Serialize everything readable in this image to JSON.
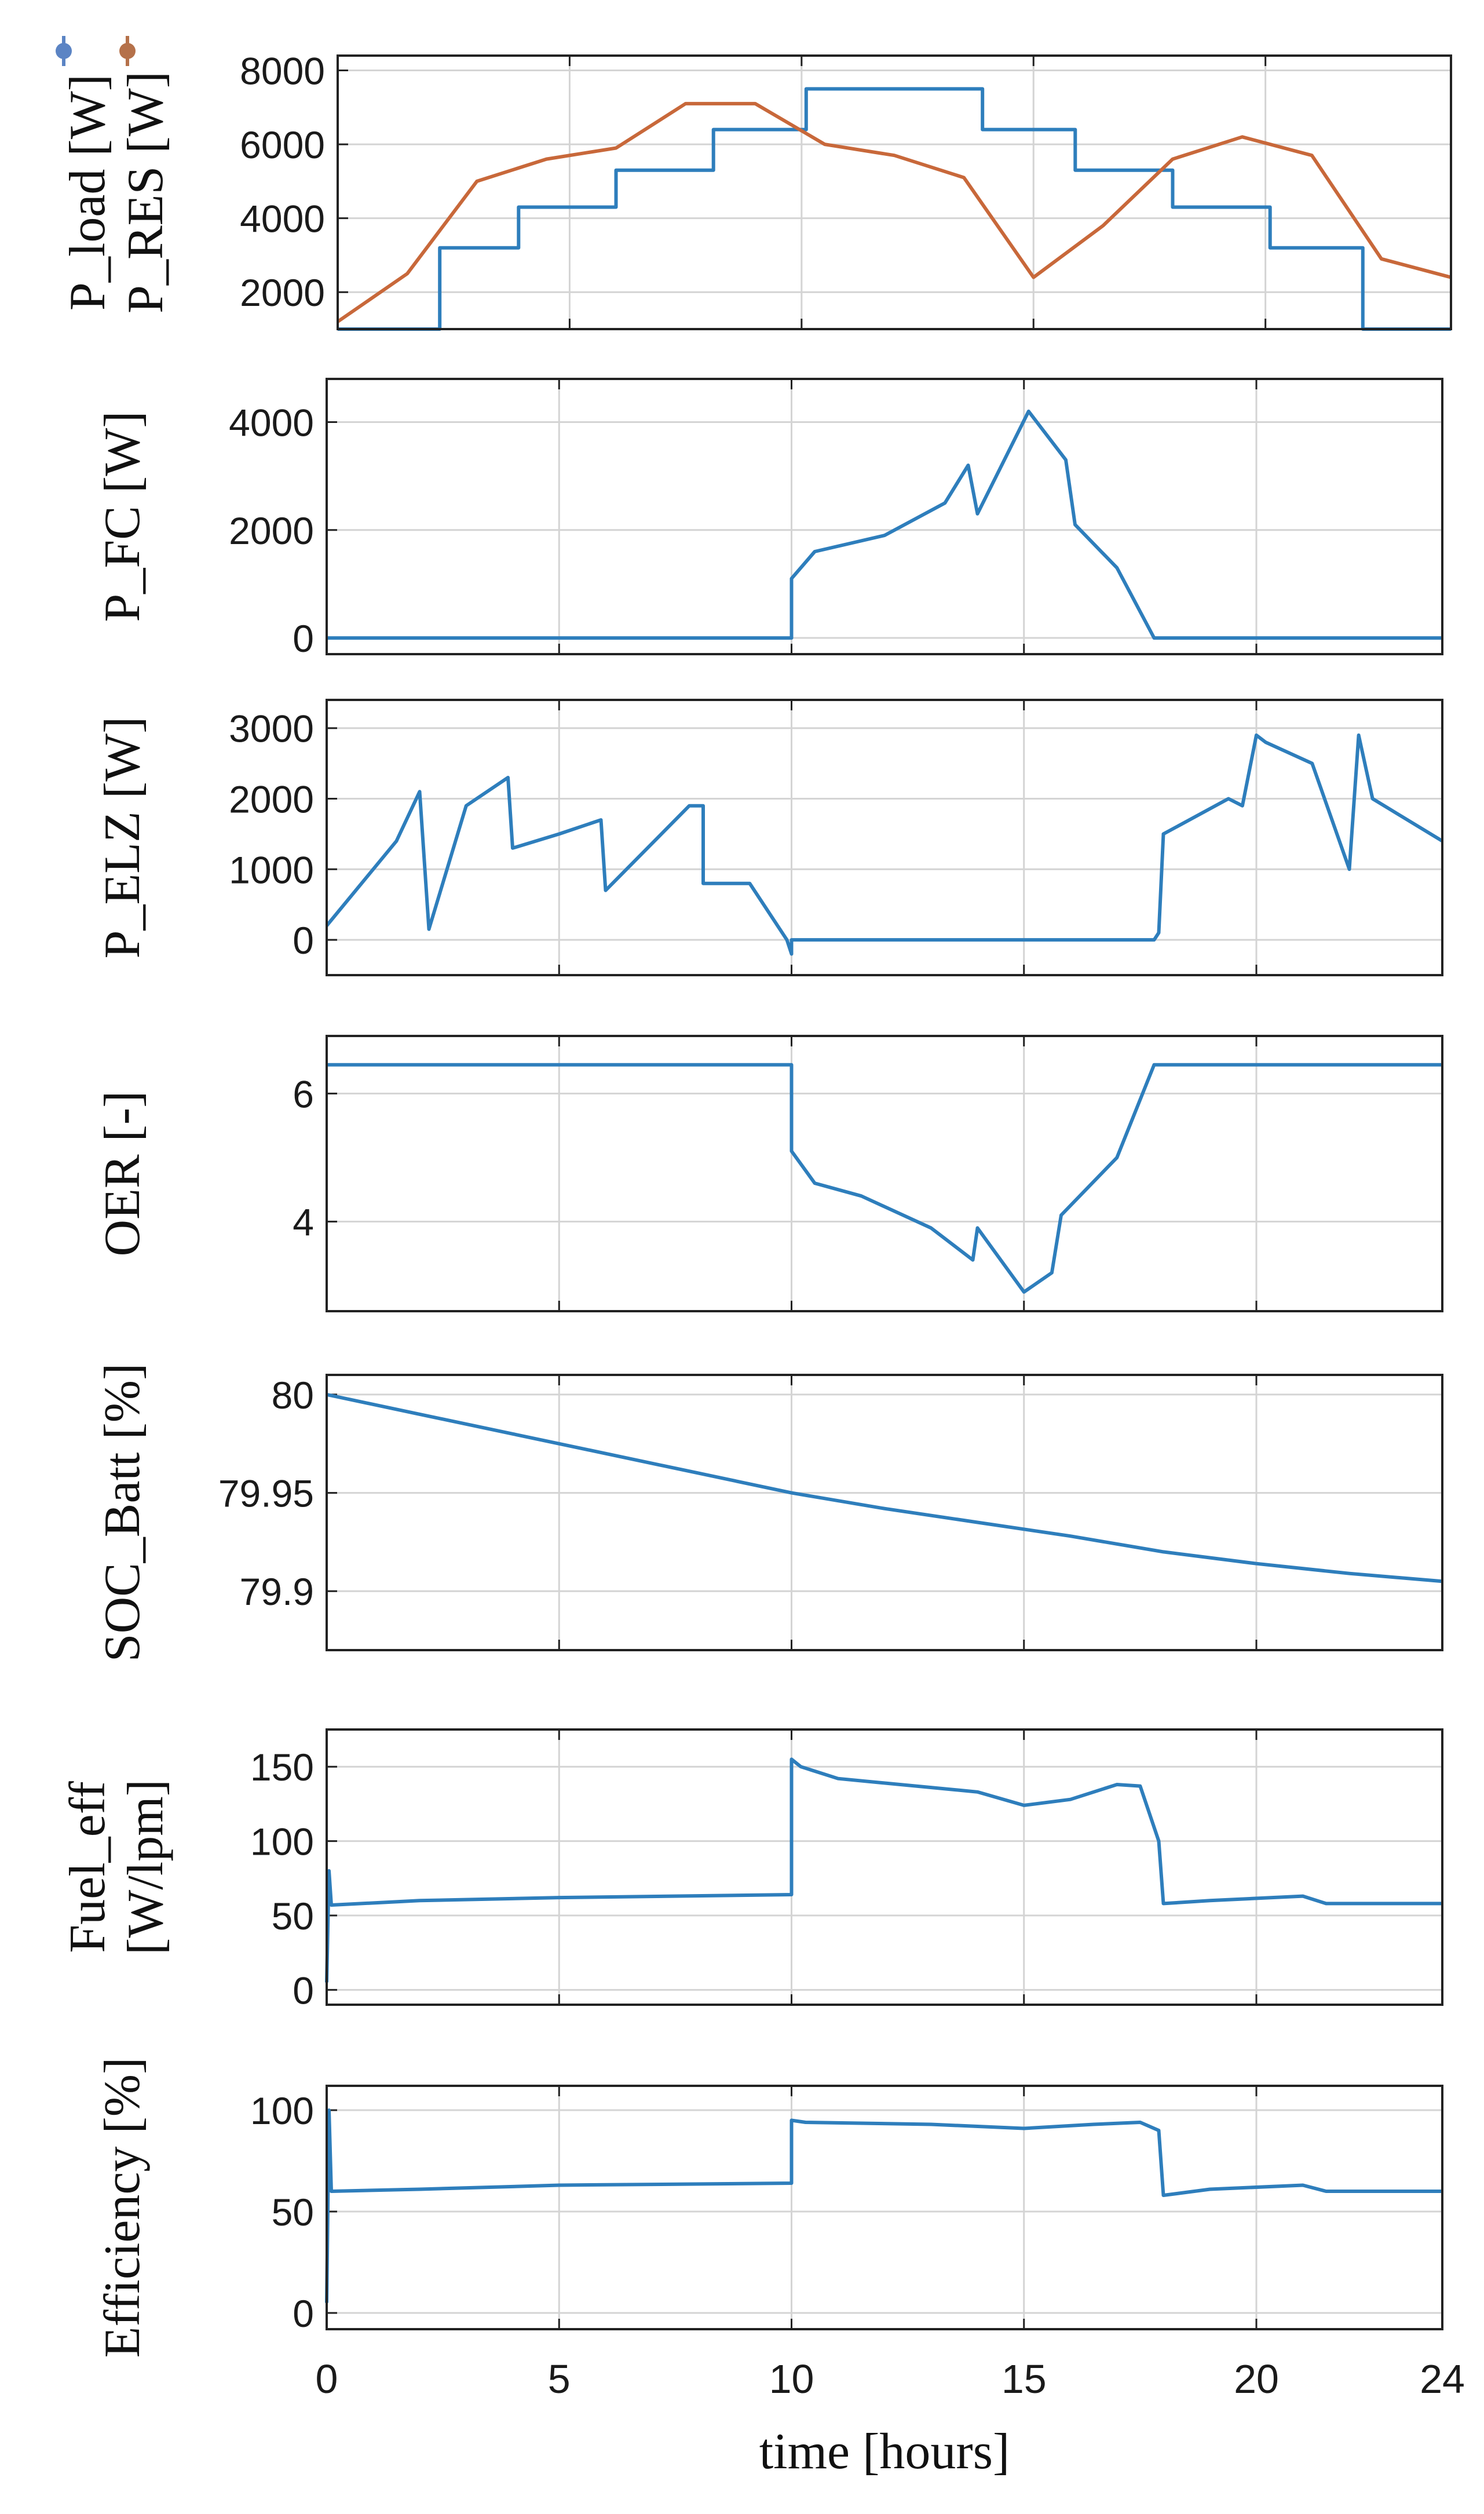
{
  "chart_data": [
    {
      "type": "line",
      "ylabel_lines": [
        "P_load [W]",
        "P_RES [W]"
      ],
      "legend_marks": [
        {
          "series": "P_load",
          "color": "#5b84c4"
        },
        {
          "series": "P_RES",
          "color": "#b5714a"
        }
      ],
      "xlim": [
        0,
        24
      ],
      "ylim": [
        1000,
        8400
      ],
      "yticks": [
        2000,
        4000,
        6000,
        8000
      ],
      "ytick_labels": [
        "2000",
        "4000",
        "6000",
        "8000"
      ],
      "grid": true,
      "series": [
        {
          "name": "P_load",
          "color": "#2e7ebc",
          "x": [
            0,
            1.8,
            1.8,
            2.0,
            2.0,
            2.2,
            2.2,
            3.9,
            3.9,
            6.0,
            6.0,
            8.1,
            8.1,
            10.1,
            10.1,
            13.9,
            13.9,
            15.9,
            15.9,
            18.0,
            18.0,
            20.1,
            20.1,
            22.1,
            22.1,
            24
          ],
          "y": [
            1000,
            1000,
            1000,
            1000,
            1000,
            1000,
            3200,
            3200,
            4300,
            4300,
            5300,
            5300,
            6400,
            6400,
            7500,
            7500,
            6400,
            6400,
            5300,
            5300,
            4300,
            4300,
            3200,
            3200,
            1000,
            1000
          ]
        },
        {
          "name": "P_RES",
          "color": "#c8683a",
          "x": [
            0,
            1.5,
            3.0,
            4.5,
            6.0,
            7.5,
            9.0,
            10.5,
            12.0,
            13.5,
            15.0,
            16.5,
            18.0,
            19.5,
            21.0,
            22.5,
            24
          ],
          "y": [
            1200,
            2500,
            5000,
            5600,
            5900,
            7100,
            7100,
            6000,
            5700,
            5100,
            2400,
            3800,
            5600,
            6200,
            5700,
            2900,
            2400
          ]
        }
      ]
    },
    {
      "type": "line",
      "ylabel_lines": [
        "P_FC [W]"
      ],
      "xlim": [
        0,
        24
      ],
      "ylim": [
        -300,
        4800
      ],
      "yticks": [
        0,
        2000,
        4000
      ],
      "ytick_labels": [
        "0",
        "2000",
        "4000"
      ],
      "grid": true,
      "series": [
        {
          "name": "P_FC",
          "color": "#2e7ebc",
          "x": [
            0,
            10.0,
            10.0,
            10.5,
            12.0,
            13.3,
            13.8,
            14.0,
            15.1,
            15.9,
            16.1,
            17.0,
            17.8,
            24
          ],
          "y": [
            0,
            0,
            1100,
            1600,
            1900,
            2500,
            3200,
            2300,
            4200,
            3300,
            2100,
            1300,
            0,
            0
          ]
        }
      ]
    },
    {
      "type": "line",
      "ylabel_lines": [
        "P_ELZ [W]"
      ],
      "xlim": [
        0,
        24
      ],
      "ylim": [
        -500,
        3400
      ],
      "yticks": [
        0,
        1000,
        2000,
        3000
      ],
      "ytick_labels": [
        "0",
        "1000",
        "2000",
        "3000"
      ],
      "grid": true,
      "series": [
        {
          "name": "P_ELZ",
          "color": "#2e7ebc",
          "x": [
            0,
            1.5,
            2.0,
            2.2,
            3.0,
            3.9,
            4.0,
            5.0,
            5.9,
            6.0,
            7.8,
            8.1,
            8.1,
            9.1,
            9.9,
            10.0,
            10.0,
            13.0,
            16.0,
            17.8,
            17.9,
            18.0,
            19.4,
            19.7,
            20.0,
            20.2,
            21.2,
            22.0,
            22.2,
            22.5,
            24
          ],
          "y": [
            200,
            1400,
            2100,
            150,
            1900,
            2300,
            1300,
            1500,
            1700,
            700,
            1900,
            1900,
            800,
            800,
            0,
            -200,
            0,
            0,
            0,
            0,
            100,
            1500,
            2000,
            1900,
            2900,
            2800,
            2500,
            1000,
            2900,
            2000,
            1400
          ]
        }
      ]
    },
    {
      "type": "line",
      "ylabel_lines": [
        "OER [-]"
      ],
      "xlim": [
        0,
        24
      ],
      "ylim": [
        2.6,
        6.9
      ],
      "yticks": [
        4,
        6
      ],
      "ytick_labels": [
        "4",
        "6"
      ],
      "grid": true,
      "series": [
        {
          "name": "OER",
          "color": "#2e7ebc",
          "x": [
            0,
            10.0,
            10.0,
            10.5,
            11.5,
            13.0,
            13.9,
            14.0,
            15.0,
            15.6,
            15.8,
            17.0,
            17.8,
            24
          ],
          "y": [
            6.45,
            6.45,
            5.1,
            4.6,
            4.4,
            3.9,
            3.4,
            3.9,
            2.9,
            3.2,
            4.1,
            5.0,
            6.45,
            6.45
          ]
        }
      ]
    },
    {
      "type": "line",
      "ylabel_lines": [
        "SOC_Batt [%]"
      ],
      "xlim": [
        0,
        24
      ],
      "ylim": [
        79.87,
        80.01
      ],
      "yticks": [
        79.9,
        79.95,
        80
      ],
      "ytick_labels": [
        "79.9",
        "79.95",
        "80"
      ],
      "grid": true,
      "series": [
        {
          "name": "SOC_Batt",
          "color": "#2e7ebc",
          "x": [
            0,
            2,
            4,
            6,
            8,
            10,
            12,
            14,
            16,
            18,
            20,
            22,
            24
          ],
          "y": [
            80.0,
            79.99,
            79.98,
            79.97,
            79.96,
            79.95,
            79.942,
            79.935,
            79.928,
            79.92,
            79.914,
            79.909,
            79.905
          ]
        }
      ]
    },
    {
      "type": "line",
      "ylabel_lines": [
        "Fuel_eff",
        "[W/lpm]"
      ],
      "xlim": [
        0,
        24
      ],
      "ylim": [
        -10,
        175
      ],
      "yticks": [
        0,
        50,
        100,
        150
      ],
      "ytick_labels": [
        "0",
        "50",
        "100",
        "150"
      ],
      "grid": true,
      "series": [
        {
          "name": "Fuel_eff",
          "color": "#2e7ebc",
          "x": [
            0,
            0.05,
            0.1,
            2.0,
            5.0,
            10.0,
            10.0,
            10.2,
            11.0,
            14.0,
            15.0,
            16.0,
            17.0,
            17.5,
            17.9,
            18.0,
            19.0,
            21.0,
            21.5,
            24
          ],
          "y": [
            5,
            80,
            57,
            60,
            62,
            64,
            155,
            150,
            142,
            133,
            124,
            128,
            138,
            137,
            100,
            58,
            60,
            63,
            58,
            58
          ]
        }
      ]
    },
    {
      "type": "line",
      "ylabel_lines": [
        "Efficiency [%]"
      ],
      "xlim": [
        0,
        24
      ],
      "ylim": [
        -8,
        112
      ],
      "yticks": [
        0,
        50,
        100
      ],
      "ytick_labels": [
        "0",
        "50",
        "100"
      ],
      "grid": true,
      "xtick_labels": [
        "0",
        "5",
        "10",
        "15",
        "20",
        "24"
      ],
      "xticks": [
        0,
        5,
        10,
        15,
        20,
        24
      ],
      "xlabel": "time [hours]",
      "series": [
        {
          "name": "Efficiency",
          "color": "#2e7ebc",
          "x": [
            0,
            0.05,
            0.1,
            2.0,
            5.0,
            10.0,
            10.0,
            10.3,
            13.0,
            15.0,
            16.5,
            17.5,
            17.9,
            18.0,
            19.0,
            21.0,
            21.5,
            24
          ],
          "y": [
            5,
            100,
            60,
            61,
            63,
            64,
            95,
            94,
            93,
            91,
            93,
            94,
            90,
            58,
            61,
            63,
            60,
            60
          ]
        }
      ]
    }
  ]
}
